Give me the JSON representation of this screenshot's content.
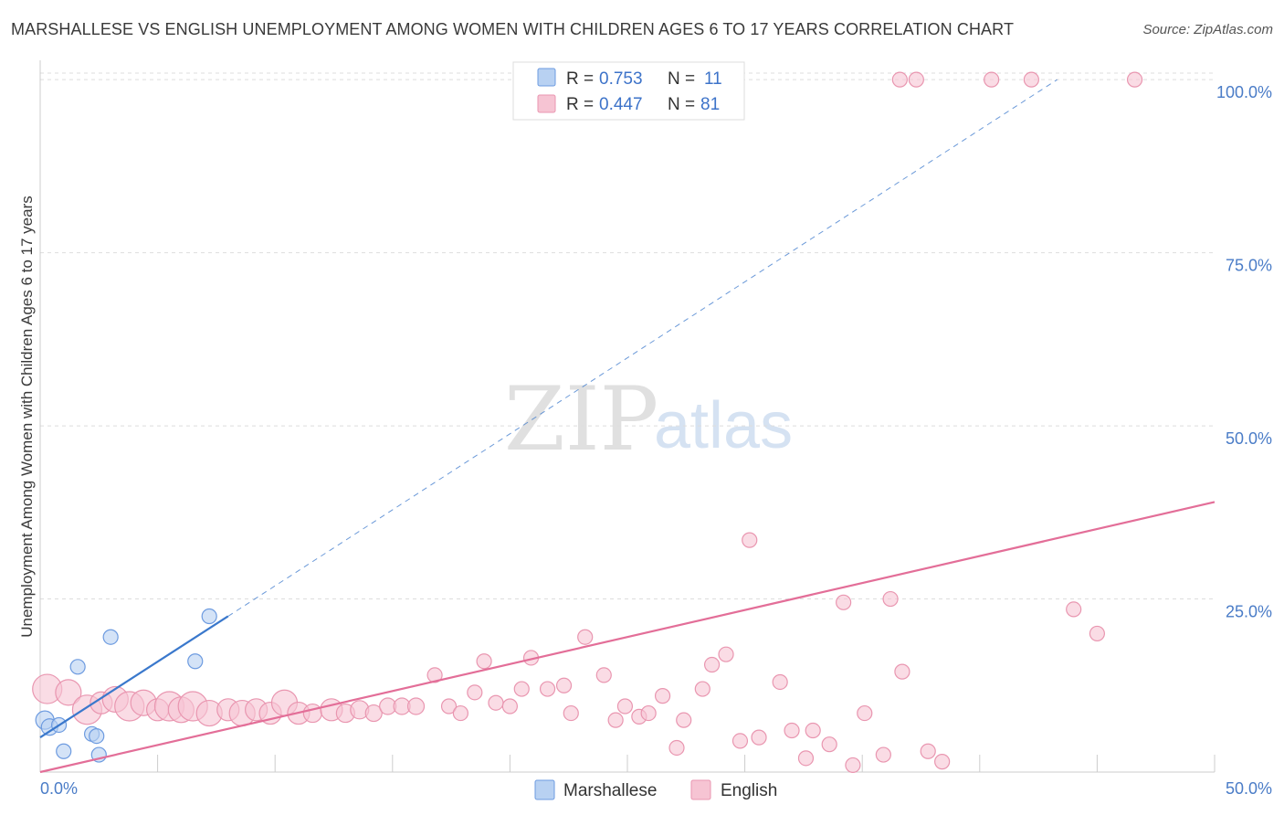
{
  "header": {
    "title": "MARSHALLESE VS ENGLISH UNEMPLOYMENT AMONG WOMEN WITH CHILDREN AGES 6 TO 17 YEARS CORRELATION CHART",
    "source": "Source: ZipAtlas.com"
  },
  "watermark": {
    "zip": "ZIP",
    "atlas": "atlas"
  },
  "legend": {
    "rows": [
      {
        "r_label": "R =",
        "r_value": "0.753",
        "n_label": "N =",
        "n_value": "11"
      },
      {
        "r_label": "R =",
        "r_value": "0.447",
        "n_label": "N =",
        "n_value": "81"
      }
    ]
  },
  "bottom_legend": {
    "marshallese": "Marshallese",
    "english": "English"
  },
  "colors": {
    "marshallese_fill": "#b8d1f2",
    "marshallese_stroke": "#6d9be0",
    "marshallese_line": "#3a78cc",
    "english_fill": "#f6c4d3",
    "english_stroke": "#e996b0",
    "english_line": "#e36e98",
    "tick_text": "#4a7cc7",
    "grid": "#dddddd"
  },
  "chart_data": {
    "type": "scatter",
    "title": "MARSHALLESE VS ENGLISH UNEMPLOYMENT AMONG WOMEN WITH CHILDREN AGES 6 TO 17 YEARS CORRELATION CHART",
    "xlabel": "",
    "ylabel": "Unemployment Among Women with Children Ages 6 to 17 years",
    "xlim": [
      0,
      50
    ],
    "ylim": [
      0,
      102
    ],
    "x_tick_labels": [
      "0.0%",
      "50.0%"
    ],
    "y_ticks": [
      25,
      50,
      75,
      100
    ],
    "y_tick_labels": [
      "25.0%",
      "50.0%",
      "75.0%",
      "100.0%"
    ],
    "series": [
      {
        "name": "Marshallese",
        "r": 0.753,
        "n": 11,
        "points": [
          {
            "x": 0.2,
            "y": 7.5,
            "size": 10
          },
          {
            "x": 0.4,
            "y": 6.5,
            "size": 9
          },
          {
            "x": 0.8,
            "y": 6.8,
            "size": 8
          },
          {
            "x": 1.0,
            "y": 3.0,
            "size": 8
          },
          {
            "x": 1.6,
            "y": 15.2,
            "size": 8
          },
          {
            "x": 2.2,
            "y": 5.5,
            "size": 8
          },
          {
            "x": 2.4,
            "y": 5.2,
            "size": 8
          },
          {
            "x": 2.5,
            "y": 2.5,
            "size": 8
          },
          {
            "x": 3.0,
            "y": 19.5,
            "size": 8
          },
          {
            "x": 6.6,
            "y": 16.0,
            "size": 8
          },
          {
            "x": 7.2,
            "y": 22.5,
            "size": 8
          }
        ],
        "trend_solid": {
          "x0": 0,
          "y0": 5.0,
          "x1": 8.0,
          "y1": 22.5
        },
        "trend_dashed": {
          "x0": 8.0,
          "y0": 22.5,
          "x1": 43.3,
          "y1": 100
        }
      },
      {
        "name": "English",
        "r": 0.447,
        "n": 81,
        "points": [
          {
            "x": 0.3,
            "y": 12.0,
            "size": 16
          },
          {
            "x": 1.2,
            "y": 11.5,
            "size": 14
          },
          {
            "x": 2.0,
            "y": 9.0,
            "size": 16
          },
          {
            "x": 2.6,
            "y": 10.0,
            "size": 12
          },
          {
            "x": 3.2,
            "y": 10.5,
            "size": 14
          },
          {
            "x": 3.8,
            "y": 9.5,
            "size": 16
          },
          {
            "x": 4.4,
            "y": 10.0,
            "size": 14
          },
          {
            "x": 5.0,
            "y": 9.0,
            "size": 12
          },
          {
            "x": 5.5,
            "y": 9.5,
            "size": 16
          },
          {
            "x": 6.0,
            "y": 9.0,
            "size": 14
          },
          {
            "x": 6.5,
            "y": 9.5,
            "size": 16
          },
          {
            "x": 7.2,
            "y": 8.5,
            "size": 14
          },
          {
            "x": 8.0,
            "y": 9.0,
            "size": 12
          },
          {
            "x": 8.6,
            "y": 8.5,
            "size": 14
          },
          {
            "x": 9.2,
            "y": 9.0,
            "size": 12
          },
          {
            "x": 9.8,
            "y": 8.5,
            "size": 12
          },
          {
            "x": 10.4,
            "y": 10.0,
            "size": 14
          },
          {
            "x": 11.0,
            "y": 8.5,
            "size": 12
          },
          {
            "x": 11.6,
            "y": 8.5,
            "size": 10
          },
          {
            "x": 12.4,
            "y": 9.0,
            "size": 12
          },
          {
            "x": 13.0,
            "y": 8.5,
            "size": 10
          },
          {
            "x": 13.6,
            "y": 9.0,
            "size": 10
          },
          {
            "x": 14.2,
            "y": 8.5,
            "size": 9
          },
          {
            "x": 14.8,
            "y": 9.5,
            "size": 9
          },
          {
            "x": 15.4,
            "y": 9.5,
            "size": 9
          },
          {
            "x": 16.0,
            "y": 9.5,
            "size": 9
          },
          {
            "x": 16.8,
            "y": 14.0,
            "size": 8
          },
          {
            "x": 17.4,
            "y": 9.5,
            "size": 8
          },
          {
            "x": 17.9,
            "y": 8.5,
            "size": 8
          },
          {
            "x": 18.5,
            "y": 11.5,
            "size": 8
          },
          {
            "x": 18.9,
            "y": 16.0,
            "size": 8
          },
          {
            "x": 19.4,
            "y": 10.0,
            "size": 8
          },
          {
            "x": 20.0,
            "y": 9.5,
            "size": 8
          },
          {
            "x": 20.5,
            "y": 12.0,
            "size": 8
          },
          {
            "x": 20.9,
            "y": 16.5,
            "size": 8
          },
          {
            "x": 21.6,
            "y": 12.0,
            "size": 8
          },
          {
            "x": 22.3,
            "y": 12.5,
            "size": 8
          },
          {
            "x": 22.6,
            "y": 8.5,
            "size": 8
          },
          {
            "x": 23.2,
            "y": 19.5,
            "size": 8
          },
          {
            "x": 24.0,
            "y": 14.0,
            "size": 8
          },
          {
            "x": 24.5,
            "y": 7.5,
            "size": 8
          },
          {
            "x": 24.9,
            "y": 9.5,
            "size": 8
          },
          {
            "x": 25.5,
            "y": 8.0,
            "size": 8
          },
          {
            "x": 25.9,
            "y": 8.5,
            "size": 8
          },
          {
            "x": 26.5,
            "y": 11.0,
            "size": 8
          },
          {
            "x": 27.1,
            "y": 3.5,
            "size": 8
          },
          {
            "x": 27.4,
            "y": 7.5,
            "size": 8
          },
          {
            "x": 28.2,
            "y": 12.0,
            "size": 8
          },
          {
            "x": 28.6,
            "y": 15.5,
            "size": 8
          },
          {
            "x": 29.2,
            "y": 17.0,
            "size": 8
          },
          {
            "x": 29.8,
            "y": 4.5,
            "size": 8
          },
          {
            "x": 30.2,
            "y": 33.5,
            "size": 8
          },
          {
            "x": 30.6,
            "y": 5.0,
            "size": 8
          },
          {
            "x": 31.5,
            "y": 13.0,
            "size": 8
          },
          {
            "x": 32.0,
            "y": 6.0,
            "size": 8
          },
          {
            "x": 32.6,
            "y": 2.0,
            "size": 8
          },
          {
            "x": 32.9,
            "y": 6.0,
            "size": 8
          },
          {
            "x": 33.6,
            "y": 4.0,
            "size": 8
          },
          {
            "x": 34.2,
            "y": 24.5,
            "size": 8
          },
          {
            "x": 34.6,
            "y": 1.0,
            "size": 8
          },
          {
            "x": 35.1,
            "y": 8.5,
            "size": 8
          },
          {
            "x": 35.9,
            "y": 2.5,
            "size": 8
          },
          {
            "x": 36.2,
            "y": 25.0,
            "size": 8
          },
          {
            "x": 36.7,
            "y": 14.5,
            "size": 8
          },
          {
            "x": 37.8,
            "y": 3.0,
            "size": 8
          },
          {
            "x": 38.4,
            "y": 1.5,
            "size": 8
          },
          {
            "x": 36.6,
            "y": 100,
            "size": 8
          },
          {
            "x": 37.3,
            "y": 100,
            "size": 8
          },
          {
            "x": 40.5,
            "y": 100,
            "size": 8
          },
          {
            "x": 42.2,
            "y": 100,
            "size": 8
          },
          {
            "x": 46.6,
            "y": 100,
            "size": 8
          },
          {
            "x": 44.0,
            "y": 23.5,
            "size": 8
          },
          {
            "x": 45.0,
            "y": 20.0,
            "size": 8
          }
        ],
        "trend_solid": {
          "x0": 0,
          "y0": 0,
          "x1": 50,
          "y1": 39
        }
      }
    ],
    "legend_position": "top-center"
  }
}
